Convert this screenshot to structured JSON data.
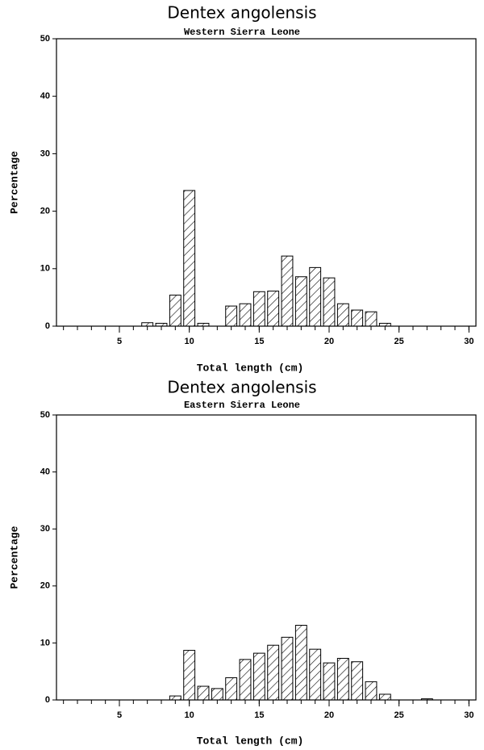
{
  "chart_data": [
    {
      "type": "bar",
      "title": "Dentex angolensis",
      "subtitle": "Western Sierra Leone",
      "x_label": "Total length (cm)",
      "y_label": "Percentage",
      "x": [
        1,
        2,
        3,
        4,
        5,
        6,
        7,
        8,
        9,
        10,
        11,
        12,
        13,
        14,
        15,
        16,
        17,
        18,
        19,
        20,
        21,
        22,
        23,
        24,
        25,
        26,
        27,
        28,
        29,
        30
      ],
      "values": [
        0,
        0,
        0,
        0,
        0,
        0,
        0.6,
        0.5,
        5.4,
        23.6,
        0.5,
        0,
        3.5,
        3.9,
        6.0,
        6.1,
        12.2,
        8.6,
        10.2,
        8.4,
        3.9,
        2.8,
        2.5,
        0.5,
        0,
        0,
        0,
        0,
        0,
        0
      ],
      "color": "#000000",
      "hatch": true,
      "xlim": [
        0.5,
        30.5
      ],
      "xticks": [
        5,
        10,
        15,
        20,
        25,
        30
      ],
      "xminorticks": [
        1,
        2,
        3,
        4,
        5,
        6,
        7,
        8,
        9,
        10,
        11,
        12,
        13,
        14,
        15,
        16,
        17,
        18,
        19,
        20,
        21,
        22,
        23,
        24,
        25,
        26,
        27,
        28,
        29,
        30
      ],
      "ylim": [
        0,
        50
      ],
      "yticks": [
        0,
        10,
        20,
        30,
        40,
        50
      ]
    },
    {
      "type": "bar",
      "title": "Dentex angolensis",
      "subtitle": "Eastern Sierra Leone",
      "x_label": "Total length (cm)",
      "y_label": "Percentage",
      "x": [
        1,
        2,
        3,
        4,
        5,
        6,
        7,
        8,
        9,
        10,
        11,
        12,
        13,
        14,
        15,
        16,
        17,
        18,
        19,
        20,
        21,
        22,
        23,
        24,
        25,
        26,
        27,
        28,
        29,
        30
      ],
      "values": [
        0,
        0,
        0,
        0,
        0,
        0,
        0,
        0,
        0.7,
        8.7,
        2.4,
        2.0,
        3.9,
        7.1,
        8.2,
        9.6,
        11.0,
        13.1,
        8.9,
        6.5,
        7.3,
        6.7,
        3.2,
        1.0,
        0,
        0,
        0.2,
        0,
        0,
        0
      ],
      "color": "#000000",
      "hatch": true,
      "xlim": [
        0.5,
        30.5
      ],
      "xticks": [
        5,
        10,
        15,
        20,
        25,
        30
      ],
      "xminorticks": [
        1,
        2,
        3,
        4,
        5,
        6,
        7,
        8,
        9,
        10,
        11,
        12,
        13,
        14,
        15,
        16,
        17,
        18,
        19,
        20,
        21,
        22,
        23,
        24,
        25,
        26,
        27,
        28,
        29,
        30
      ],
      "ylim": [
        0,
        50
      ],
      "yticks": [
        0,
        10,
        20,
        30,
        40,
        50
      ]
    }
  ]
}
